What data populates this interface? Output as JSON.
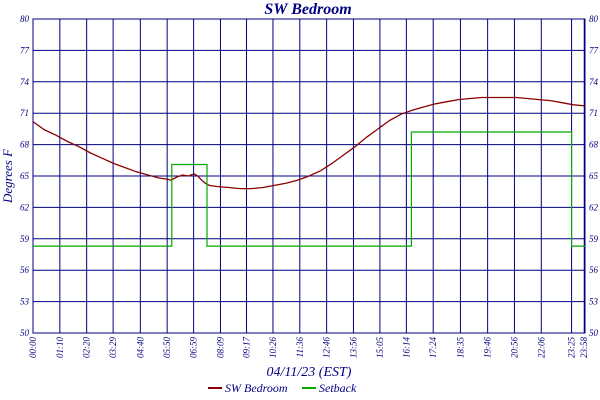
{
  "chart_data": {
    "type": "line",
    "title": "SW Bedroom",
    "xlabel": "04/11/23 (EST)",
    "ylabel": "Degrees F",
    "ylim": [
      50,
      80
    ],
    "grid": true,
    "legend_placement": "bottom-center",
    "y_ticks": [
      "50",
      "53",
      "56",
      "59",
      "62",
      "65",
      "68",
      "71",
      "74",
      "77",
      "80"
    ],
    "x_range_minutes": [
      0,
      1440
    ],
    "x_tick_labels": [
      {
        "label": "00:00",
        "minute": 0
      },
      {
        "label": "01:10",
        "minute": 70
      },
      {
        "label": "02:20",
        "minute": 140
      },
      {
        "label": "03:29",
        "minute": 209
      },
      {
        "label": "04:40",
        "minute": 280
      },
      {
        "label": "05:50",
        "minute": 350
      },
      {
        "label": "06:59",
        "minute": 419
      },
      {
        "label": "08:09",
        "minute": 489
      },
      {
        "label": "09:17",
        "minute": 557
      },
      {
        "label": "10:26",
        "minute": 626
      },
      {
        "label": "11:36",
        "minute": 696
      },
      {
        "label": "12:46",
        "minute": 766
      },
      {
        "label": "13:56",
        "minute": 836
      },
      {
        "label": "15:05",
        "minute": 905
      },
      {
        "label": "16:14",
        "minute": 974
      },
      {
        "label": "17:24",
        "minute": 1044
      },
      {
        "label": "18:35",
        "minute": 1115
      },
      {
        "label": "19:46",
        "minute": 1186
      },
      {
        "label": "20:56",
        "minute": 1256
      },
      {
        "label": "22:06",
        "minute": 1326
      },
      {
        "label": "23:25",
        "minute": 1405
      },
      {
        "label": "23:58",
        "minute": 1438
      }
    ],
    "colors": {
      "background": "#ffffff",
      "grid": "#000080",
      "axis_text": "#000080",
      "title": "#000080",
      "sw_bedroom": "#8b0000",
      "setback": "#00aa00"
    },
    "series": [
      {
        "name": "SW Bedroom",
        "color": "#8b0000",
        "x": [
          0,
          30,
          60,
          90,
          120,
          150,
          180,
          210,
          240,
          270,
          300,
          330,
          350,
          360,
          375,
          390,
          405,
          420,
          430,
          440,
          450,
          460,
          480,
          510,
          540,
          570,
          600,
          630,
          660,
          690,
          720,
          750,
          780,
          810,
          840,
          870,
          900,
          930,
          960,
          990,
          1020,
          1050,
          1080,
          1110,
          1140,
          1170,
          1200,
          1230,
          1260,
          1290,
          1320,
          1350,
          1380,
          1410,
          1440
        ],
        "values": [
          70.2,
          69.4,
          68.9,
          68.3,
          67.8,
          67.2,
          66.7,
          66.2,
          65.8,
          65.4,
          65.1,
          64.8,
          64.7,
          64.6,
          64.9,
          65.1,
          65.0,
          65.2,
          65.0,
          64.6,
          64.3,
          64.1,
          64.0,
          63.9,
          63.8,
          63.8,
          63.9,
          64.1,
          64.3,
          64.6,
          65.0,
          65.5,
          66.2,
          67.0,
          67.8,
          68.7,
          69.5,
          70.3,
          70.9,
          71.3,
          71.6,
          71.9,
          72.1,
          72.3,
          72.4,
          72.5,
          72.5,
          72.5,
          72.5,
          72.4,
          72.3,
          72.2,
          72.0,
          71.8,
          71.7
        ]
      },
      {
        "name": "Setback",
        "color": "#00aa00",
        "x": [
          0,
          362,
          362,
          454,
          454,
          987,
          987,
          1405,
          1405,
          1440
        ],
        "values": [
          58.3,
          58.3,
          66.1,
          66.1,
          58.3,
          58.3,
          69.2,
          69.2,
          58.3,
          58.3
        ]
      }
    ]
  }
}
